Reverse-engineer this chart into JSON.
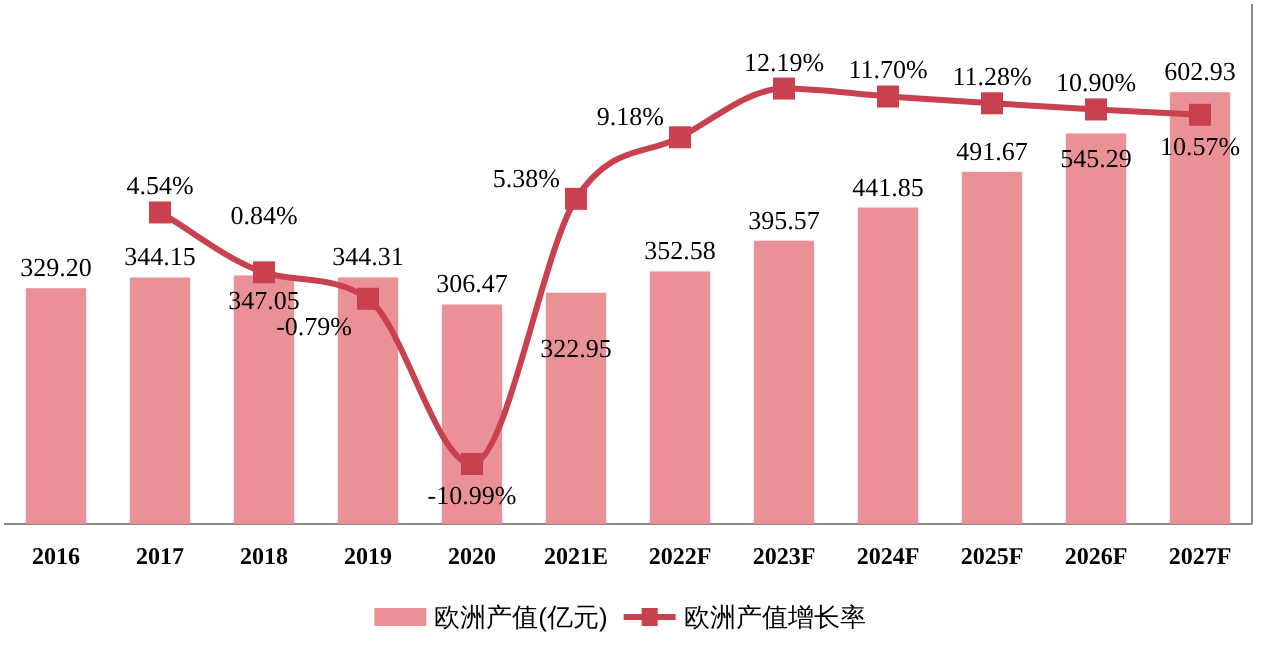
{
  "chart_data": {
    "type": "bar",
    "categories": [
      "2016",
      "2017",
      "2018",
      "2019",
      "2020",
      "2021E",
      "2022F",
      "2023F",
      "2024F",
      "2025F",
      "2026F",
      "2027F"
    ],
    "series": [
      {
        "name": "欧洲产值(亿元)",
        "type": "bar",
        "color": "#ea9198",
        "values": [
          329.2,
          344.15,
          347.05,
          344.31,
          306.47,
          322.95,
          352.58,
          395.57,
          441.85,
          491.67,
          545.29,
          602.93
        ],
        "value_labels": [
          "329.20",
          "344.15",
          "347.05",
          "344.31",
          "306.47",
          "322.95",
          "352.58",
          "395.57",
          "441.85",
          "491.67",
          "545.29",
          "602.93"
        ]
      },
      {
        "name": "欧洲产值增长率",
        "type": "line",
        "axis": "y2",
        "color": "#c9404f",
        "values": [
          null,
          4.54,
          0.84,
          -0.79,
          -10.99,
          5.38,
          9.18,
          12.19,
          11.7,
          11.28,
          10.9,
          10.57
        ],
        "value_labels": [
          null,
          "4.54%",
          "0.84%",
          "-0.79%",
          "-10.99%",
          "5.38%",
          "9.18%",
          "12.19%",
          "11.70%",
          "11.28%",
          "10.90%",
          "10.57%"
        ]
      }
    ],
    "marker": "square",
    "legend": "bottom"
  }
}
